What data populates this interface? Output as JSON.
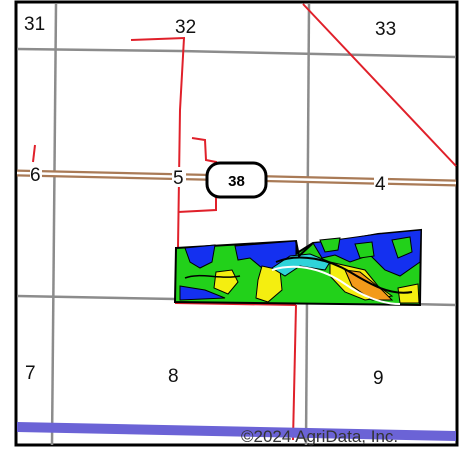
{
  "map": {
    "sections": {
      "s31": "31",
      "s32": "32",
      "s33": "33",
      "s6": "6",
      "s5": "5",
      "s4": "4",
      "s7": "7",
      "s8": "8",
      "s9": "9"
    },
    "highway": "38",
    "copyright": "©2024 AgriData, Inc.",
    "colors": {
      "section_line": "#8c8c8c",
      "red_line": "#e0202a",
      "road_outer": "#a97a56",
      "water_band": "#6b63d6",
      "soil_green": "#22d11a",
      "soil_blue": "#1430f0",
      "soil_yellow": "#f4ee10",
      "soil_orange": "#f39a1a",
      "soil_cyan": "#2fd3d9",
      "soil_outline": "#000000"
    }
  }
}
